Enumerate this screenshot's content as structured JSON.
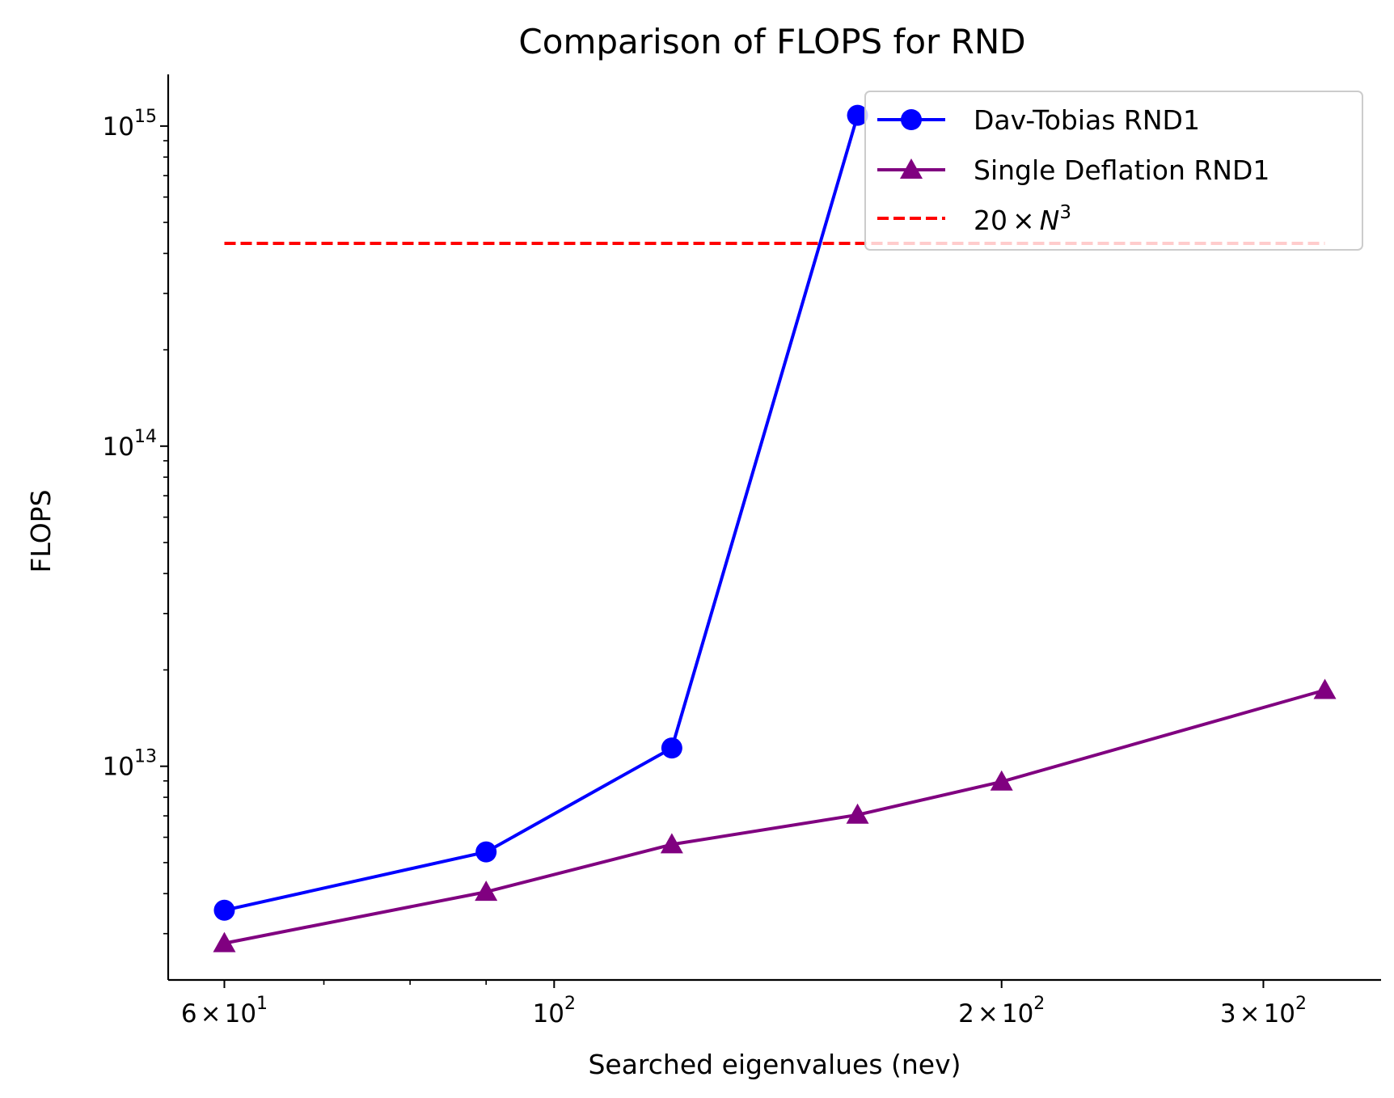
{
  "chart_data": {
    "type": "line",
    "title": "Comparison of FLOPS for RND",
    "xlabel": "Searched eigenvalues (nev)",
    "ylabel": "FLOPS",
    "xscale": "log",
    "yscale": "log",
    "xlim": [
      55,
      360
    ],
    "ylim": [
      2150000000000.0,
      1450000000000000.0
    ],
    "x_ticks": [
      {
        "value": 60,
        "mant": "6",
        "exp": "1"
      },
      {
        "value": 100,
        "mant": "",
        "exp": "2"
      },
      {
        "value": 200,
        "mant": "2",
        "exp": "2"
      },
      {
        "value": 300,
        "mant": "3",
        "exp": "2"
      }
    ],
    "y_ticks": [
      {
        "value": 10000000000000.0,
        "exp": "13"
      },
      {
        "value": 100000000000000.0,
        "exp": "14"
      },
      {
        "value": 1000000000000000.0,
        "exp": "15"
      }
    ],
    "series": [
      {
        "name": "Dav-Tobias RND1",
        "color": "#0000ff",
        "marker": "circle",
        "linestyle": "solid",
        "x": [
          60,
          90,
          120,
          160
        ],
        "y": [
          3550000000000.0,
          5400000000000.0,
          11400000000000.0,
          1080000000000000.0
        ]
      },
      {
        "name": "Single Deflation RND1",
        "color": "#800080",
        "marker": "triangle",
        "linestyle": "solid",
        "x": [
          60,
          90,
          120,
          160,
          200,
          330
        ],
        "y": [
          2800000000000.0,
          4050000000000.0,
          5700000000000.0,
          7050000000000.0,
          8950000000000.0,
          17300000000000.0
        ]
      },
      {
        "name_text": "20",
        "name_times": "×",
        "name_var": "N",
        "name_sup": "3",
        "color": "#ff0000",
        "marker": "none",
        "linestyle": "dashed",
        "x": [
          60,
          330
        ],
        "y": [
          430000000000000.0,
          430000000000000.0
        ]
      }
    ],
    "legend": {
      "placement": "top-right"
    },
    "grid": false
  }
}
